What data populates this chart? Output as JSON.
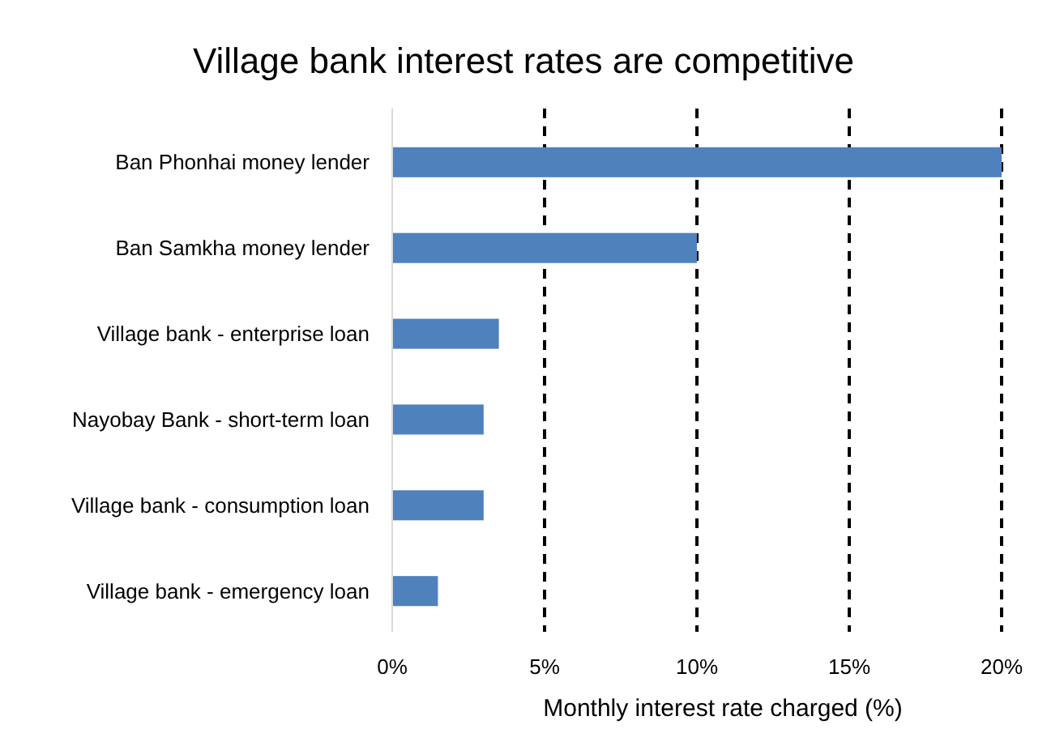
{
  "chart_data": {
    "type": "bar",
    "orientation": "horizontal",
    "title": "Village bank interest rates are competitive",
    "xlabel": "Monthly interest rate charged (%)",
    "categories": [
      "Ban Phonhai money lender",
      "Ban Samkha money lender",
      "Village bank - enterprise loan",
      "Nayobay Bank - short-term loan",
      "Village bank - consumption loan",
      "Village bank - emergency loan"
    ],
    "values": [
      20,
      10,
      3.5,
      3,
      3,
      1.5
    ],
    "color": "#4f81bd",
    "xlim": [
      0,
      20
    ],
    "xticks": [
      {
        "value": 0,
        "label": "0%"
      },
      {
        "value": 5,
        "label": "5%"
      },
      {
        "value": 10,
        "label": "10%"
      },
      {
        "value": 15,
        "label": "15%"
      },
      {
        "value": 20,
        "label": "20%"
      }
    ],
    "grid": "x",
    "line_style": "dashed"
  }
}
